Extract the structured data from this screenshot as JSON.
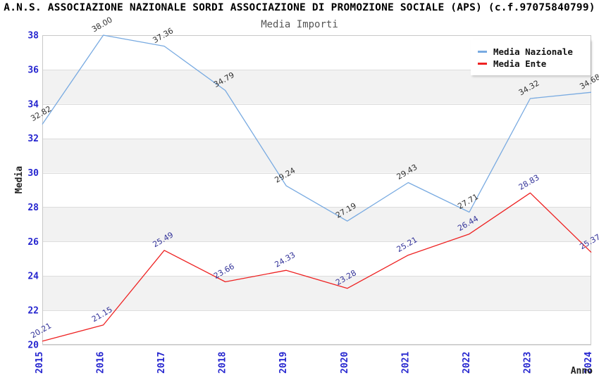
{
  "chart_data": {
    "type": "line",
    "title": "A.N.S. ASSOCIAZIONE NAZIONALE SORDI ASSOCIAZIONE DI PROMOZIONE SOCIALE (APS) (c.f.97075840799)",
    "subtitle": "Media Importi",
    "xlabel": "Anno",
    "ylabel": "Media",
    "categories": [
      "2015",
      "2016",
      "2017",
      "2018",
      "2019",
      "2020",
      "2021",
      "2022",
      "2023",
      "2024"
    ],
    "series": [
      {
        "name": "Media Nazionale",
        "color": "#78aae1",
        "label_color": "#333333",
        "values": [
          32.82,
          38.0,
          37.36,
          34.79,
          29.24,
          27.19,
          29.43,
          27.71,
          34.32,
          34.68
        ]
      },
      {
        "name": "Media Ente",
        "color": "#ee2222",
        "label_color": "#333399",
        "values": [
          20.21,
          21.15,
          25.49,
          23.66,
          24.33,
          23.28,
          25.21,
          26.44,
          28.83,
          25.37
        ]
      }
    ],
    "ylim": [
      20,
      38
    ],
    "ytick_step": 2,
    "value_label_decimals": 2,
    "grid": "horizontal-bands",
    "band_fill": "#f2f2f2",
    "gridline_color": "#dddddd",
    "border_color": "#c8c8c8",
    "tick_label_color": "#2525cf",
    "legend_position": "top-right"
  }
}
